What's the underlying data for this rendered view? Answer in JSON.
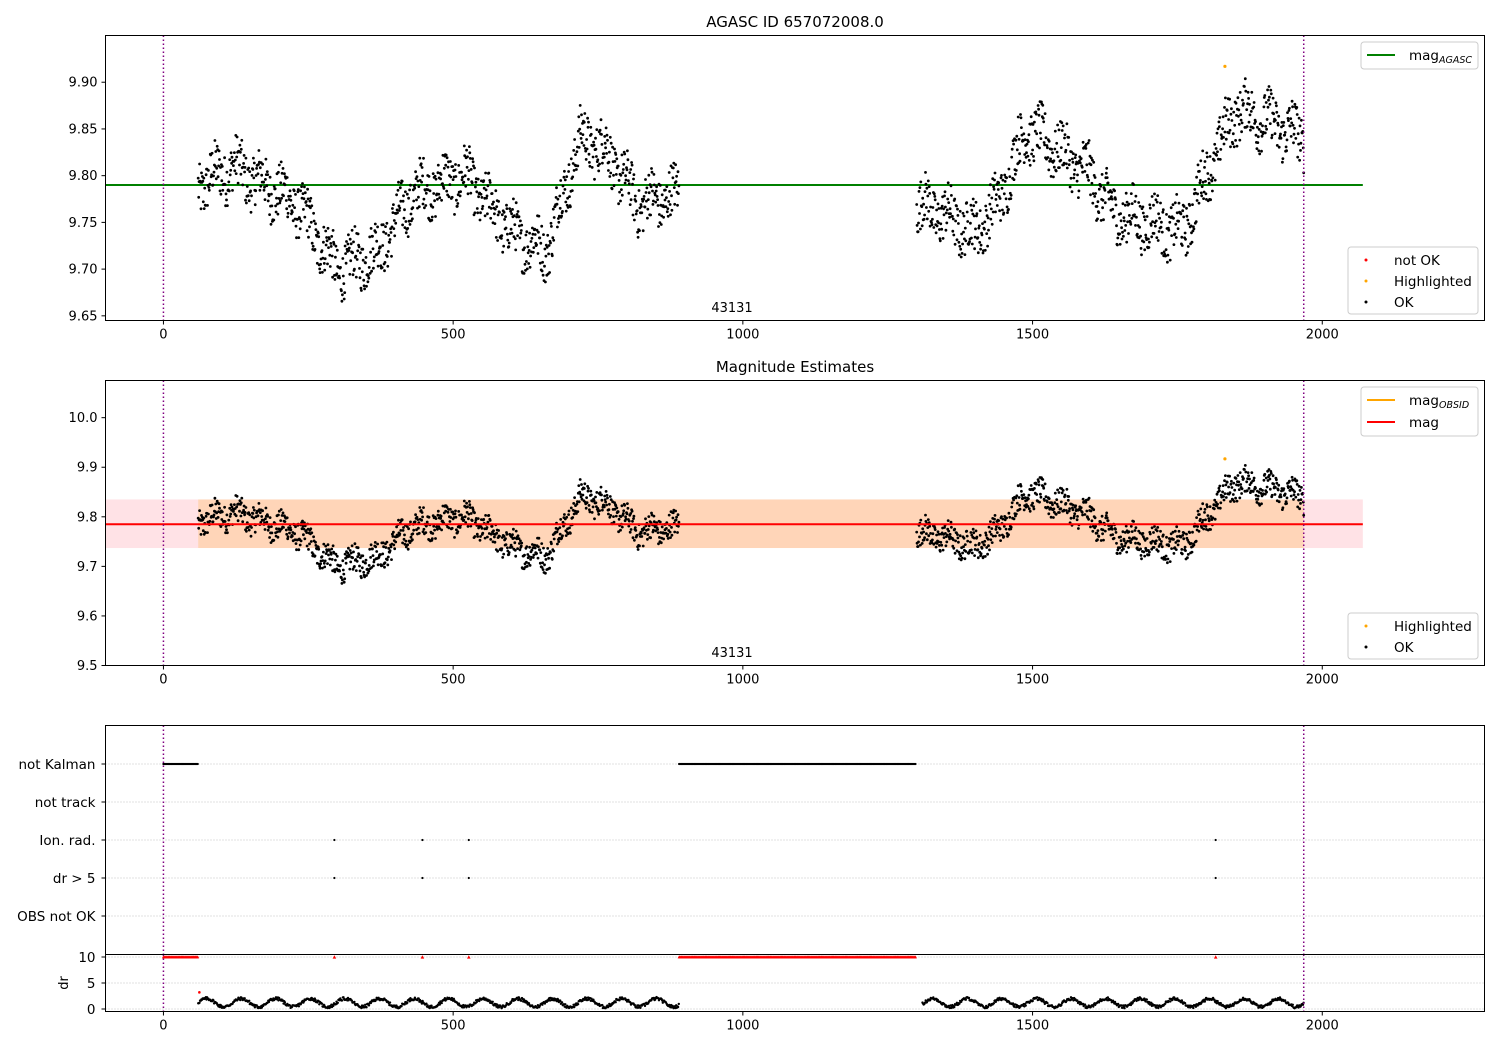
{
  "chart_data": [
    {
      "type": "scatter",
      "title": "AGASC ID 657072008.0",
      "xlim": [
        -100,
        2280
      ],
      "ylim": [
        9.645,
        9.95
      ],
      "x_ticks": [
        0,
        500,
        1000,
        1500,
        2000
      ],
      "y_ticks": [
        9.65,
        9.7,
        9.75,
        9.8,
        9.85,
        9.9
      ],
      "y_tick_labels": [
        "9.65",
        "9.70",
        "9.75",
        "9.80",
        "9.85",
        "9.90"
      ],
      "grid": false,
      "annotation": "43131",
      "annotation_x": 982,
      "vlines": [
        0,
        1968
      ],
      "hline": {
        "name": "mag",
        "subscript": "AGASC",
        "y": 9.79,
        "x0": -100,
        "x1": 2070,
        "color": "#008000"
      },
      "legend_top": {
        "position": "top-right",
        "entries": [
          {
            "label": "mag",
            "subscript": "AGASC",
            "color": "#008000",
            "kind": "line"
          }
        ]
      },
      "legend_bottom": {
        "position": "bottom-right",
        "entries": [
          {
            "label": "not OK",
            "color": "#ff0000",
            "kind": "dot"
          },
          {
            "label": "Highlighted",
            "color": "#ffa500",
            "kind": "dot"
          },
          {
            "label": "OK",
            "color": "#000000",
            "kind": "dot"
          }
        ]
      },
      "highlighted": [
        {
          "x": 1832,
          "y": 9.917
        }
      ],
      "segments": [
        {
          "x": [
            60,
            120,
            230,
            300,
            370,
            430,
            520,
            600,
            660,
            720,
            760,
            820,
            890
          ],
          "y": [
            9.79,
            9.81,
            9.77,
            9.7,
            9.72,
            9.78,
            9.8,
            9.74,
            9.72,
            9.84,
            9.83,
            9.77,
            9.78
          ]
        },
        {
          "x": [
            1300,
            1340,
            1400,
            1440,
            1490,
            1540,
            1600,
            1640,
            1700,
            1760,
            1800,
            1850,
            1900,
            1968
          ],
          "y": [
            9.77,
            9.76,
            9.74,
            9.77,
            9.85,
            9.83,
            9.8,
            9.76,
            9.75,
            9.74,
            9.8,
            9.87,
            9.86,
            9.84
          ]
        }
      ]
    },
    {
      "type": "scatter",
      "title": "Magnitude Estimates",
      "xlim": [
        -100,
        2280
      ],
      "ylim": [
        9.5,
        10.075
      ],
      "x_ticks": [
        0,
        500,
        1000,
        1500,
        2000
      ],
      "y_ticks": [
        9.5,
        9.6,
        9.7,
        9.8,
        9.9,
        10.0
      ],
      "y_tick_labels": [
        "9.5",
        "9.6",
        "9.7",
        "9.8",
        "9.9",
        "10.0"
      ],
      "grid": false,
      "annotation": "43131",
      "annotation_x": 982,
      "vlines": [
        0,
        1968
      ],
      "mag_line": {
        "y": 9.785,
        "color": "#ff0000"
      },
      "mag_band": {
        "y0": 9.737,
        "y1": 9.835,
        "color": "#ffb6c1"
      },
      "obsid_band": {
        "y0": 9.737,
        "y1": 9.835,
        "x0": 60,
        "x1": 1968,
        "color": "#ffa500"
      },
      "legend_top": {
        "position": "top-right",
        "entries": [
          {
            "label": "mag",
            "subscript": "OBSID",
            "color": "#ffa500",
            "kind": "line"
          },
          {
            "label": "mag",
            "color": "#ff0000",
            "kind": "line"
          }
        ]
      },
      "legend_bottom": {
        "position": "bottom-right",
        "entries": [
          {
            "label": "Highlighted",
            "color": "#ffa500",
            "kind": "dot"
          },
          {
            "label": "OK",
            "color": "#000000",
            "kind": "dot"
          }
        ]
      },
      "highlighted": [
        {
          "x": 1832,
          "y": 9.917
        }
      ]
    },
    {
      "type": "scatter",
      "xlim": [
        -100,
        2280
      ],
      "categories": [
        "not Kalman",
        "not track",
        "Ion. rad.",
        "dr > 5",
        "OBS not OK"
      ],
      "grid": true,
      "vlines": [
        0,
        1968
      ],
      "flag_series": [
        {
          "category": "not Kalman",
          "ranges": [
            [
              0,
              60
            ],
            [
              890,
              1298
            ]
          ]
        },
        {
          "category": "not track",
          "ranges": []
        },
        {
          "category": "Ion. rad.",
          "points": [
            295,
            447,
            527,
            1816
          ]
        },
        {
          "category": "dr > 5",
          "points": [
            295,
            447,
            527,
            1816
          ]
        },
        {
          "category": "OBS not OK",
          "points": []
        }
      ]
    },
    {
      "type": "scatter",
      "ylabel": "dr",
      "xlim": [
        -100,
        2280
      ],
      "ylim": [
        -0.2,
        10.5
      ],
      "x_ticks": [
        0,
        500,
        1000,
        1500,
        2000
      ],
      "y_ticks": [
        0,
        5,
        10
      ],
      "grid": true,
      "vlines": [
        0,
        1968
      ],
      "clipped_points": {
        "ranges": [
          [
            0,
            60
          ],
          [
            890,
            1298
          ]
        ],
        "points": [
          295,
          447,
          527,
          1816
        ],
        "y": 10,
        "color": "#ff0000"
      },
      "dr_series": {
        "ranges": [
          [
            60,
            890
          ],
          [
            1310,
            1968
          ]
        ],
        "mean": 1.2,
        "color": "#000000"
      },
      "dr_red_point": {
        "x": 62,
        "y": 3.2
      }
    }
  ]
}
